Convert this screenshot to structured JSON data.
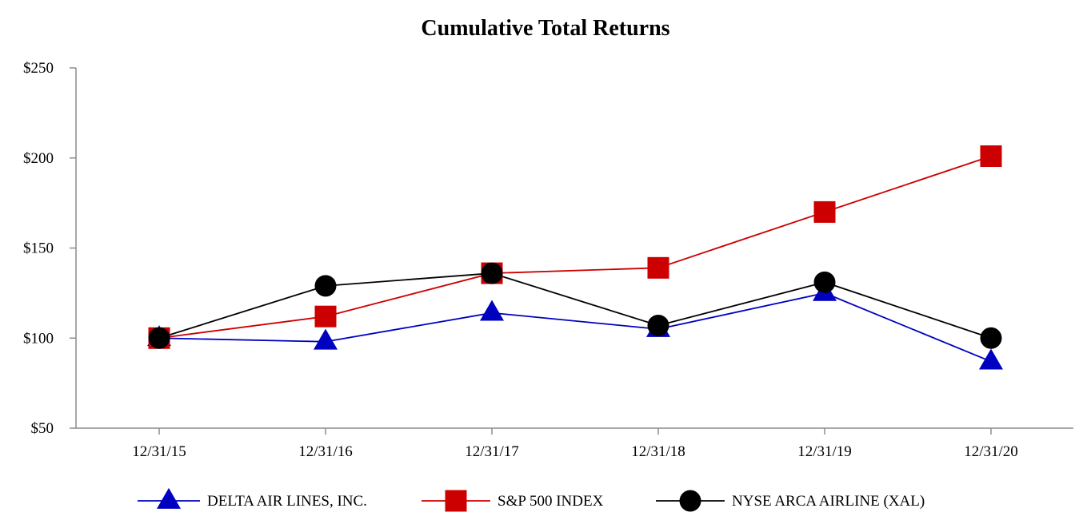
{
  "chart_data": {
    "type": "line",
    "title": "Cumulative Total Returns",
    "xlabel": "",
    "ylabel": "",
    "categories": [
      "12/31/15",
      "12/31/16",
      "12/31/17",
      "12/31/18",
      "12/31/19",
      "12/31/20"
    ],
    "y_ticks": [
      "$50",
      "$100",
      "$150",
      "$200",
      "$250"
    ],
    "ylim": [
      50,
      250
    ],
    "grid": false,
    "legend_position": "bottom",
    "series": [
      {
        "name": "DELTA AIR LINES, INC.",
        "marker": "triangle",
        "color": "#0000c0",
        "values": [
          100,
          98,
          114,
          105,
          125,
          87
        ]
      },
      {
        "name": "S&P 500 INDEX",
        "marker": "square",
        "color": "#cc0000",
        "values": [
          100,
          112,
          136,
          139,
          170,
          201
        ]
      },
      {
        "name": "NYSE ARCA AIRLINE (XAL)",
        "marker": "circle",
        "color": "#000000",
        "values": [
          100,
          129,
          136,
          107,
          131,
          100
        ]
      }
    ]
  }
}
